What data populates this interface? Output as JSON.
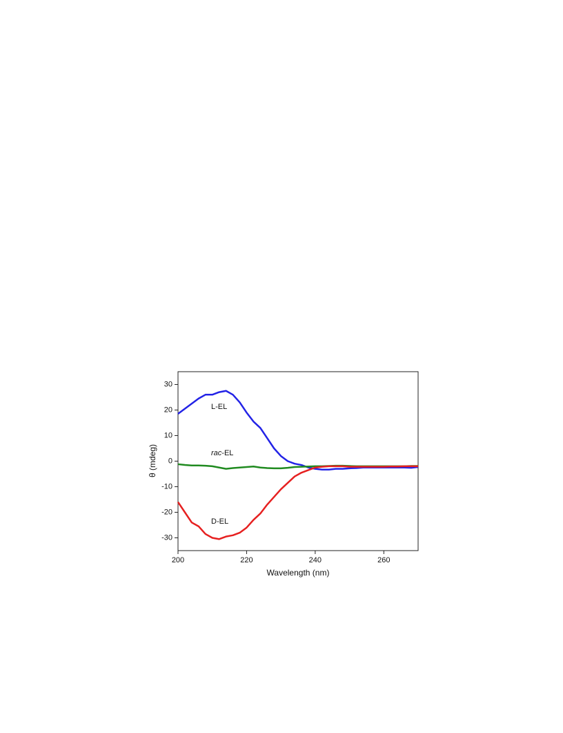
{
  "chart_data": {
    "type": "line",
    "x_label": "Wavelength (nm)",
    "y_label": "θ (mdeg)",
    "xlim": [
      200,
      270
    ],
    "ylim": [
      -35,
      35
    ],
    "xticks": [
      200,
      220,
      240,
      260
    ],
    "yticks": [
      -30,
      -20,
      -10,
      0,
      10,
      20,
      30
    ],
    "x": [
      200,
      202,
      204,
      206,
      208,
      210,
      212,
      214,
      216,
      218,
      220,
      222,
      224,
      226,
      228,
      230,
      232,
      234,
      236,
      238,
      240,
      242,
      244,
      246,
      248,
      250,
      252,
      254,
      256,
      258,
      260,
      262,
      264,
      266,
      268,
      270
    ],
    "series": [
      {
        "name": "L-EL",
        "color": "#2323e6",
        "values": [
          18.5,
          20.5,
          22.5,
          24.5,
          26,
          26,
          27,
          27.5,
          26,
          23,
          19,
          15.5,
          13,
          9,
          5,
          2,
          0,
          -1,
          -1.5,
          -2.5,
          -3,
          -3.3,
          -3.3,
          -3,
          -3,
          -2.8,
          -2.7,
          -2.5,
          -2.5,
          -2.5,
          -2.5,
          -2.5,
          -2.5,
          -2.5,
          -2.6,
          -2.3
        ]
      },
      {
        "name": "rac-EL",
        "color": "#1f8a1f",
        "values": [
          -1.2,
          -1.5,
          -1.7,
          -1.7,
          -1.8,
          -2,
          -2.5,
          -3,
          -2.7,
          -2.5,
          -2.3,
          -2.1,
          -2.5,
          -2.7,
          -2.8,
          -2.8,
          -2.6,
          -2.3,
          -2.2,
          -2.1,
          -2,
          -2,
          -1.9,
          -1.8,
          -1.8,
          -1.9,
          -2,
          -2,
          -2,
          -2,
          -2,
          -2,
          -2,
          -2,
          -1.9,
          -1.9
        ]
      },
      {
        "name": "D-EL",
        "color": "#e62020",
        "values": [
          -16,
          -20,
          -24,
          -25.5,
          -28.5,
          -30,
          -30.5,
          -29.5,
          -29,
          -28,
          -26,
          -23,
          -20.5,
          -17,
          -14,
          -11,
          -8.5,
          -6,
          -4.5,
          -3.5,
          -2.5,
          -2.2,
          -2,
          -2,
          -2,
          -2.2,
          -2.2,
          -2.2,
          -2.2,
          -2.2,
          -2.2,
          -2.1,
          -2.1,
          -2,
          -2,
          -2
        ]
      }
    ]
  }
}
